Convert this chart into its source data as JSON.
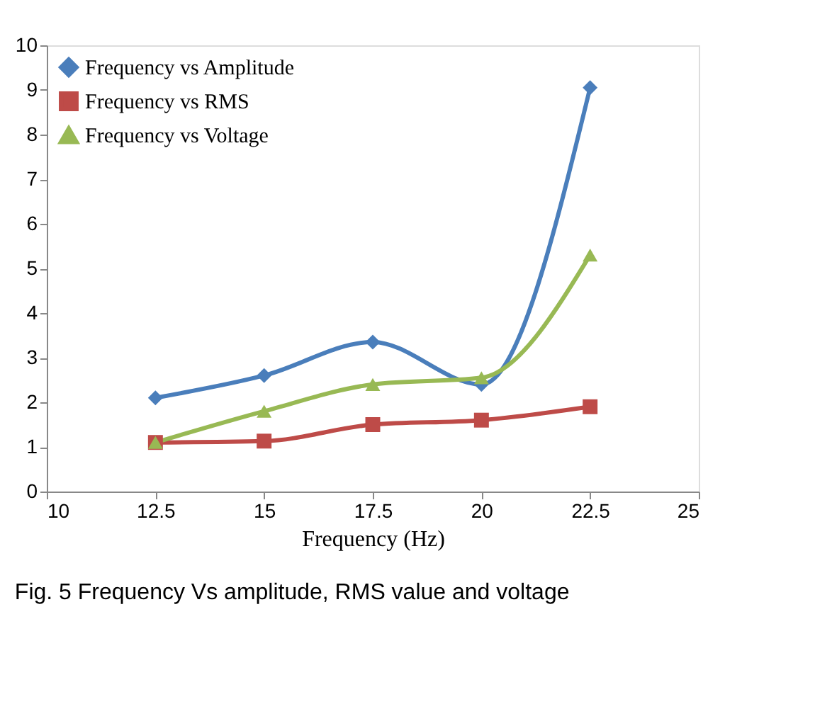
{
  "chart_data": {
    "type": "line",
    "xlabel": "Frequency (Hz)",
    "annotations": [
      "Fig. 5 Frequency Vs amplitude, RMS value and voltage"
    ],
    "x": [
      12.5,
      15,
      17.5,
      20,
      22.5
    ],
    "series": [
      {
        "name": "Frequency vs Amplitude",
        "color": "#4a7ebb",
        "marker": "diamond",
        "values": [
          2.1,
          2.6,
          3.35,
          2.4,
          9.05
        ]
      },
      {
        "name": "Frequency vs RMS",
        "color": "#be4b48",
        "marker": "square",
        "values": [
          1.1,
          1.13,
          1.5,
          1.6,
          1.9
        ]
      },
      {
        "name": "Frequency vs Voltage",
        "color": "#98b954",
        "marker": "triangle",
        "values": [
          1.1,
          1.8,
          2.4,
          2.55,
          5.3
        ]
      }
    ],
    "xlim": [
      10,
      25
    ],
    "xticks": [
      10,
      12.5,
      15,
      17.5,
      20,
      22.5,
      25
    ],
    "ylim": [
      0,
      10
    ],
    "yticks": [
      0,
      1,
      2,
      3,
      4,
      5,
      6,
      7,
      8,
      9,
      10
    ],
    "grid": false,
    "legend": "top left",
    "line_style": "solid"
  }
}
